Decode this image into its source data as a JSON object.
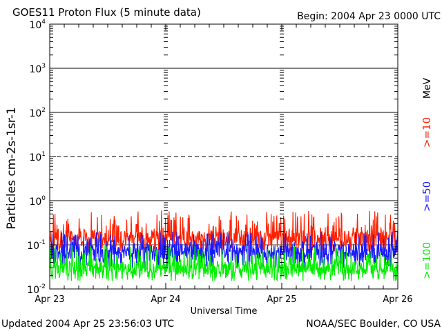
{
  "chart_data": {
    "type": "line",
    "title": "GOES11 Proton Flux (5 minute data)",
    "begin_label": "Begin: 2004 Apr 23 0000 UTC",
    "xlabel": "Universal Time",
    "ylabel": "Particles cm-2s-1sr-1",
    "y_scale": "log",
    "ylim": [
      0.01,
      10000
    ],
    "y_ticks": [
      {
        "base": "10",
        "exp": "4"
      },
      {
        "base": "10",
        "exp": "3"
      },
      {
        "base": "10",
        "exp": "2"
      },
      {
        "base": "10",
        "exp": "1"
      },
      {
        "base": "10",
        "exp": "0"
      },
      {
        "base": "10",
        "exp": "-1"
      },
      {
        "base": "10",
        "exp": "-2"
      }
    ],
    "x_ticks": [
      "Apr 23",
      "Apr 24",
      "Apr 25",
      "Apr 26"
    ],
    "xlim": [
      "2004-04-23",
      "2004-04-26"
    ],
    "grid": "solid at 1e3, 1e2, 1e0; dashed at 1e1; thin at 1e-1",
    "legend": {
      "unit": "MeV",
      "entries": [
        {
          "label": ">=10",
          "color": "#ff2000"
        },
        {
          "label": ">=50",
          "color": "#1a1aff"
        },
        {
          "label": ">=100",
          "color": "#00ee00"
        }
      ]
    },
    "series": [
      {
        "name": ">=10",
        "color": "#ff2000",
        "y_range_approx": [
          0.07,
          0.6
        ],
        "typical": 0.15
      },
      {
        "name": ">=50",
        "color": "#1a1aff",
        "y_range_approx": [
          0.03,
          0.2
        ],
        "typical": 0.07
      },
      {
        "name": ">=100",
        "color": "#00ee00",
        "y_range_approx": [
          0.015,
          0.1
        ],
        "typical": 0.03
      }
    ]
  },
  "footer": {
    "updated": "Updated 2004 Apr 25 23:56:03 UTC",
    "source": "NOAA/SEC Boulder, CO USA"
  }
}
